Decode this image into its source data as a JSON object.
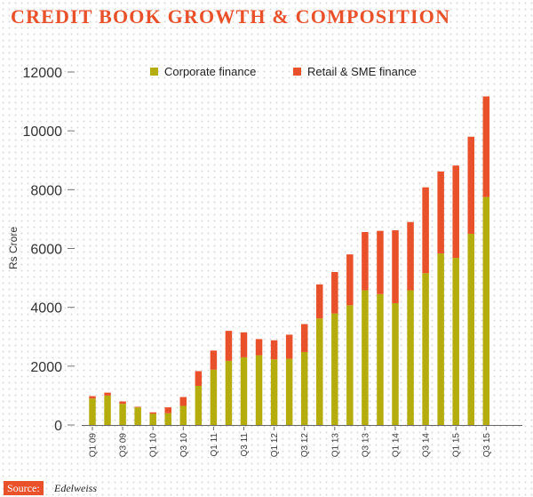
{
  "title": "CREDIT BOOK GROWTH & COMPOSITION",
  "source": {
    "label": "Source:",
    "value": "Edelweiss"
  },
  "colors": {
    "title": "#e8512a",
    "corporate": "#b5ad0e",
    "retail": "#e8512a",
    "axis_text": "#333333"
  },
  "chart_data": {
    "type": "bar",
    "stacked": true,
    "title": "CREDIT BOOK GROWTH & COMPOSITION",
    "ylabel": "Rs Crore",
    "xlabel": "",
    "ylim": [
      0,
      12000
    ],
    "yticks": [
      0,
      2000,
      4000,
      6000,
      8000,
      10000,
      12000
    ],
    "grid": false,
    "legend": "top",
    "categories": [
      "Q1 09",
      "Q2 09",
      "Q3 09",
      "Q4 09",
      "Q1 10",
      "Q2 10",
      "Q3 10",
      "Q4 10",
      "Q1 11",
      "Q2 11",
      "Q3 11",
      "Q4 11",
      "Q1 12",
      "Q2 12",
      "Q3 12",
      "Q4 12",
      "Q1 13",
      "Q2 13",
      "Q3 13",
      "Q4 13",
      "Q1 14",
      "Q2 14",
      "Q3 14",
      "Q4 14",
      "Q1 15",
      "Q2 15",
      "Q3 15"
    ],
    "tick_labels": [
      "Q1 09",
      "",
      "Q3 09",
      "",
      "Q1 10",
      "",
      "Q3 10",
      "",
      "Q1 11",
      "",
      "Q3 11",
      "",
      "Q1 12",
      "",
      "Q3 12",
      "",
      "Q1 13",
      "",
      "Q3 13",
      "",
      "Q1 14",
      "",
      "Q3 14",
      "",
      "Q1 15",
      "",
      "Q3 15"
    ],
    "series": [
      {
        "name": "Corporate finance",
        "values": [
          900,
          1000,
          720,
          600,
          380,
          400,
          650,
          1330,
          1880,
          2180,
          2300,
          2370,
          2230,
          2250,
          2480,
          3620,
          3790,
          4070,
          4580,
          4450,
          4140,
          4580,
          5160,
          5830,
          5680,
          6500,
          7750
        ]
      },
      {
        "name": "Retail & SME finance",
        "values": [
          80,
          100,
          80,
          20,
          50,
          200,
          300,
          500,
          650,
          1020,
          850,
          550,
          650,
          820,
          950,
          1160,
          1410,
          1730,
          1980,
          2150,
          2480,
          2320,
          2920,
          2790,
          3140,
          3300,
          3420
        ]
      }
    ]
  }
}
